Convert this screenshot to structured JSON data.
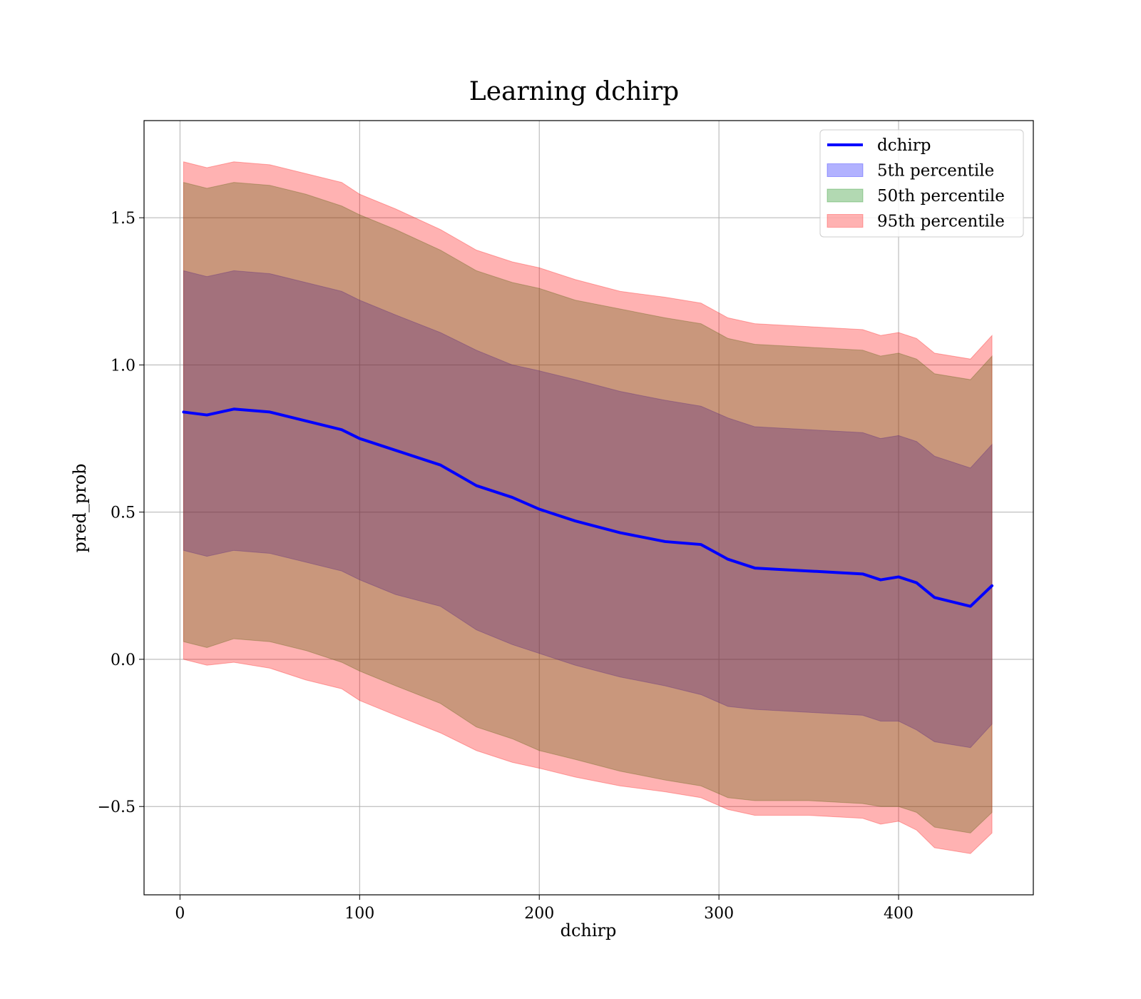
{
  "chart_data": {
    "type": "area",
    "title": "Learning dchirp",
    "xlabel": "dchirp",
    "ylabel": "pred_prob",
    "xlim": [
      -20,
      475
    ],
    "ylim": [
      -0.8,
      1.83
    ],
    "x_ticks": [
      0,
      100,
      200,
      300,
      400
    ],
    "x_tick_labels": [
      "0",
      "100",
      "200",
      "300",
      "400"
    ],
    "y_ticks": [
      -0.5,
      0.0,
      0.5,
      1.0,
      1.5
    ],
    "y_tick_labels": [
      "−0.5",
      "0.0",
      "0.5",
      "1.0",
      "1.5"
    ],
    "grid": true,
    "legend_position": "upper right",
    "x": [
      2,
      15,
      30,
      50,
      70,
      90,
      100,
      120,
      145,
      165,
      185,
      200,
      220,
      245,
      270,
      290,
      305,
      320,
      350,
      380,
      390,
      400,
      410,
      420,
      440,
      452
    ],
    "series": [
      {
        "name": "dchirp",
        "kind": "line",
        "color": "#0000ff",
        "values": [
          0.84,
          0.83,
          0.85,
          0.84,
          0.81,
          0.78,
          0.75,
          0.71,
          0.66,
          0.59,
          0.55,
          0.51,
          0.47,
          0.43,
          0.4,
          0.39,
          0.34,
          0.31,
          0.3,
          0.29,
          0.27,
          0.28,
          0.26,
          0.21,
          0.18,
          0.25
        ]
      },
      {
        "name": "5th percentile",
        "kind": "band",
        "color": "#0000ff",
        "alpha": 0.3,
        "lower": [
          0.37,
          0.35,
          0.37,
          0.36,
          0.33,
          0.3,
          0.27,
          0.22,
          0.18,
          0.1,
          0.05,
          0.02,
          -0.02,
          -0.06,
          -0.09,
          -0.12,
          -0.16,
          -0.17,
          -0.18,
          -0.19,
          -0.21,
          -0.21,
          -0.24,
          -0.28,
          -0.3,
          -0.22
        ],
        "upper": [
          1.32,
          1.3,
          1.32,
          1.31,
          1.28,
          1.25,
          1.22,
          1.17,
          1.11,
          1.05,
          1.0,
          0.98,
          0.95,
          0.91,
          0.88,
          0.86,
          0.82,
          0.79,
          0.78,
          0.77,
          0.75,
          0.76,
          0.74,
          0.69,
          0.65,
          0.73
        ]
      },
      {
        "name": "50th percentile",
        "kind": "band",
        "color": "#008000",
        "alpha": 0.3,
        "lower": [
          0.06,
          0.04,
          0.07,
          0.06,
          0.03,
          -0.01,
          -0.04,
          -0.09,
          -0.15,
          -0.23,
          -0.27,
          -0.31,
          -0.34,
          -0.38,
          -0.41,
          -0.43,
          -0.47,
          -0.48,
          -0.48,
          -0.49,
          -0.5,
          -0.5,
          -0.52,
          -0.57,
          -0.59,
          -0.52
        ],
        "upper": [
          1.62,
          1.6,
          1.62,
          1.61,
          1.58,
          1.54,
          1.51,
          1.46,
          1.39,
          1.32,
          1.28,
          1.26,
          1.22,
          1.19,
          1.16,
          1.14,
          1.09,
          1.07,
          1.06,
          1.05,
          1.03,
          1.04,
          1.02,
          0.97,
          0.95,
          1.03
        ]
      },
      {
        "name": "95th percentile",
        "kind": "band",
        "color": "#ff0000",
        "alpha": 0.3,
        "lower": [
          0.0,
          -0.02,
          -0.01,
          -0.03,
          -0.07,
          -0.1,
          -0.14,
          -0.19,
          -0.25,
          -0.31,
          -0.35,
          -0.37,
          -0.4,
          -0.43,
          -0.45,
          -0.47,
          -0.51,
          -0.53,
          -0.53,
          -0.54,
          -0.56,
          -0.55,
          -0.58,
          -0.64,
          -0.66,
          -0.59
        ],
        "upper": [
          1.69,
          1.67,
          1.69,
          1.68,
          1.65,
          1.62,
          1.58,
          1.53,
          1.46,
          1.39,
          1.35,
          1.33,
          1.29,
          1.25,
          1.23,
          1.21,
          1.16,
          1.14,
          1.13,
          1.12,
          1.1,
          1.11,
          1.09,
          1.04,
          1.02,
          1.1
        ]
      }
    ]
  }
}
